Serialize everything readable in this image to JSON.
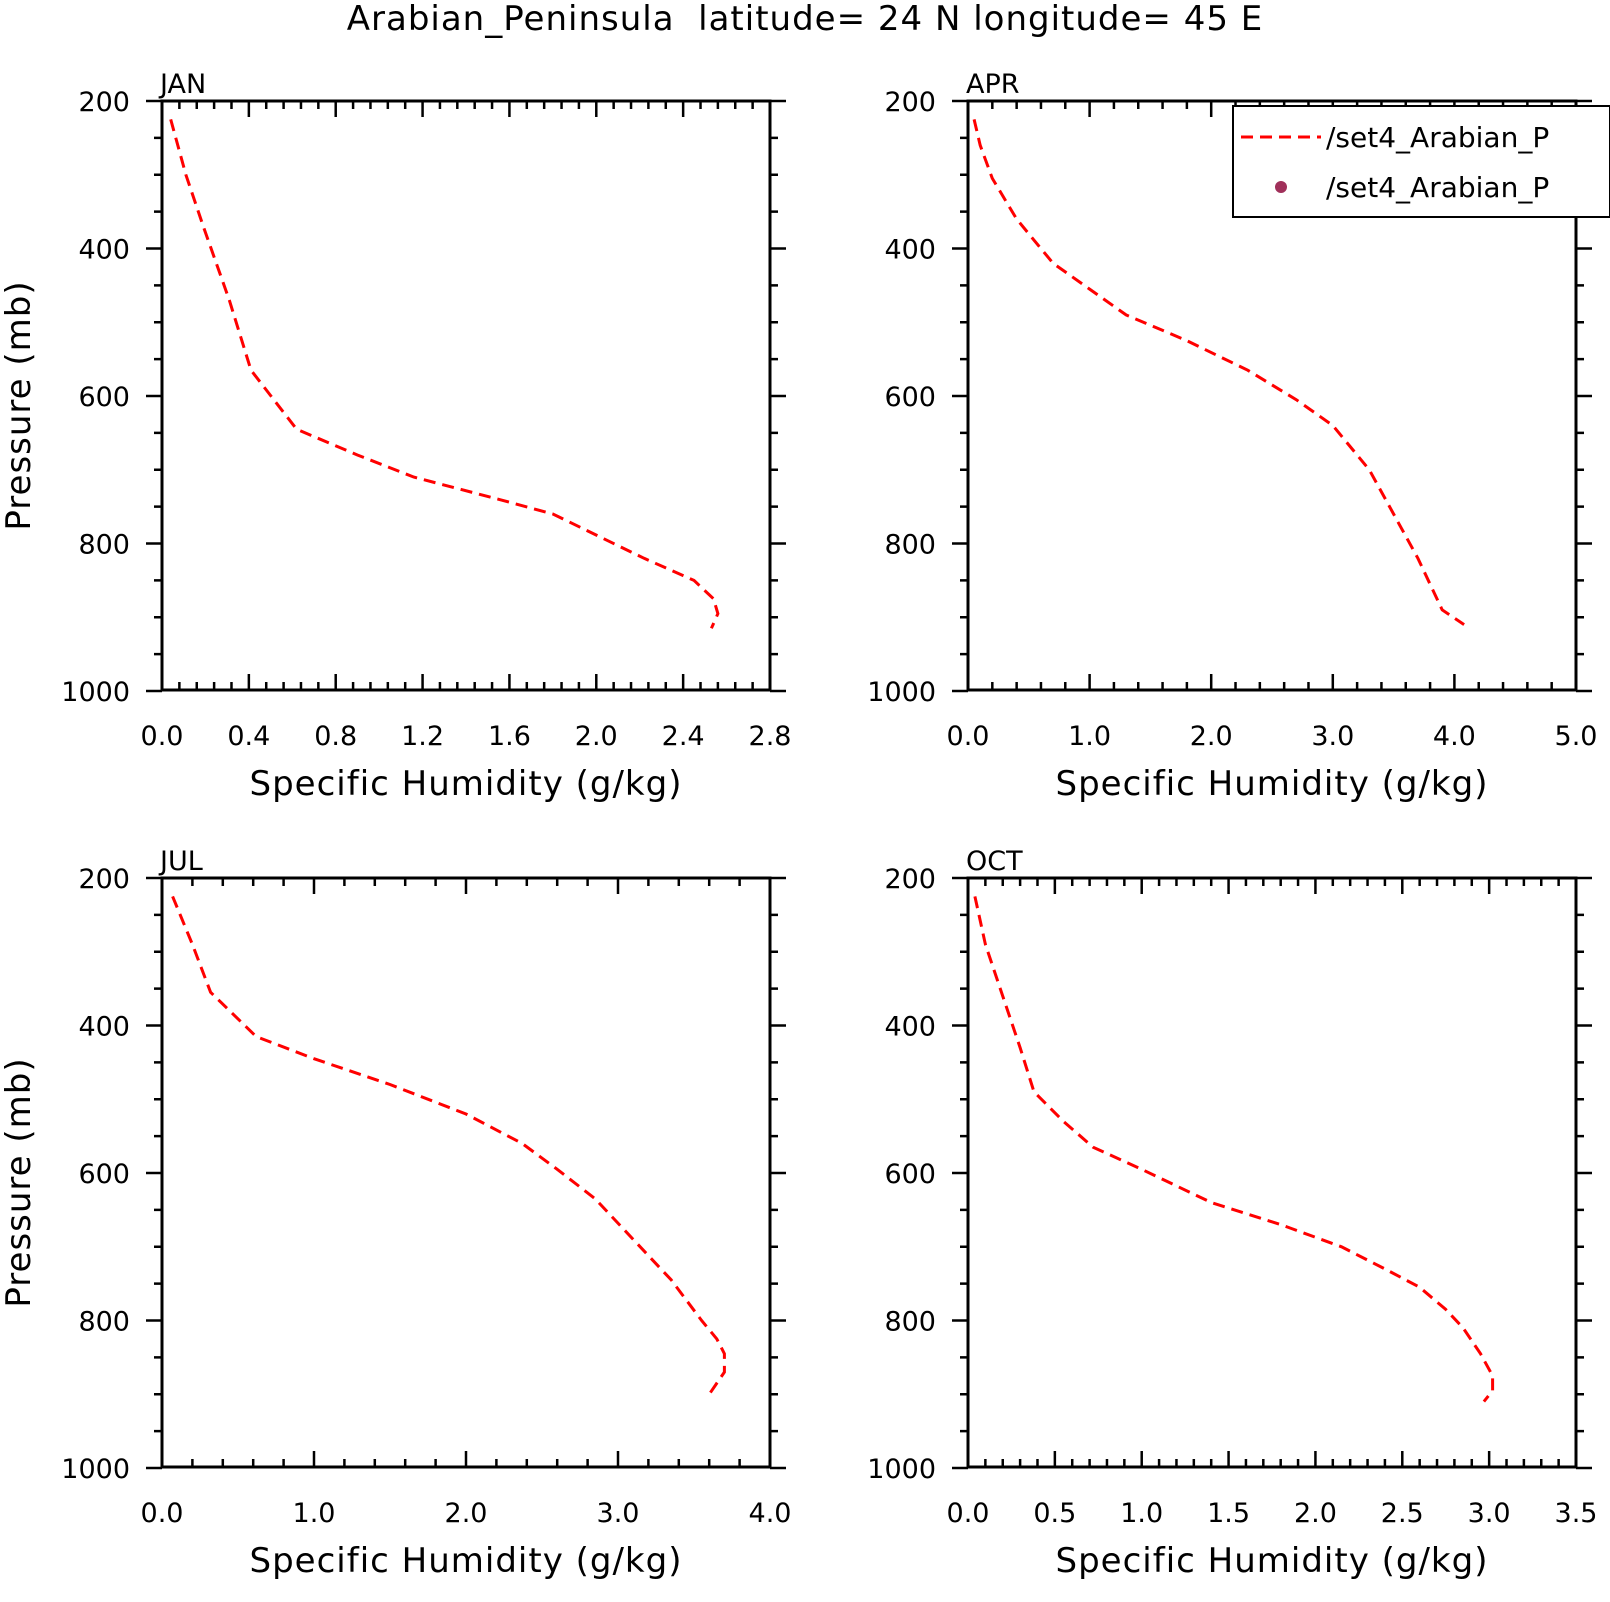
{
  "figure": {
    "title": "Arabian_Peninsula  latitude= 24 N longitude= 45 E"
  },
  "legend": {
    "entries": [
      {
        "label": "/set4_Arabian_P",
        "style": "dashed-line",
        "color": "#ff0000"
      },
      {
        "label": "/set4_Arabian_P",
        "style": "dot",
        "color": "#a0305a"
      }
    ]
  },
  "chart_data": [
    {
      "type": "line",
      "panel": "JAN",
      "xlabel": "Specific Humidity (g/kg)",
      "ylabel": "Pressure (mb)",
      "xlim": [
        0.0,
        2.8
      ],
      "ylim": [
        1000,
        200
      ],
      "y_inverted": true,
      "xticks": [
        "0.0",
        "0.4",
        "0.8",
        "1.2",
        "1.6",
        "2.0",
        "2.4",
        "2.8"
      ],
      "yticks": [
        "200",
        "400",
        "600",
        "800",
        "1000"
      ],
      "grid": false,
      "series": [
        {
          "color": "#ff0000",
          "dash": "dashed",
          "x": [
            0.04,
            0.11,
            0.19,
            0.31,
            0.41,
            0.62,
            0.9,
            1.16,
            1.55,
            1.8,
            2.22,
            2.45,
            2.54,
            2.56,
            2.53
          ],
          "y": [
            225,
            300,
            370,
            470,
            565,
            645,
            680,
            710,
            740,
            760,
            820,
            850,
            875,
            895,
            915
          ]
        }
      ]
    },
    {
      "type": "line",
      "panel": "APR",
      "xlabel": "Specific Humidity (g/kg)",
      "ylabel": "",
      "xlim": [
        0.0,
        5.0
      ],
      "ylim": [
        1000,
        200
      ],
      "y_inverted": true,
      "xticks": [
        "0.0",
        "1.0",
        "2.0",
        "3.0",
        "4.0",
        "5.0"
      ],
      "yticks": [
        "200",
        "400",
        "600",
        "800",
        "1000"
      ],
      "grid": false,
      "series": [
        {
          "color": "#ff0000",
          "dash": "dashed",
          "x": [
            0.05,
            0.1,
            0.2,
            0.4,
            0.7,
            1.0,
            1.3,
            1.8,
            2.3,
            2.7,
            3.0,
            3.3,
            3.5,
            3.7,
            3.9,
            4.08
          ],
          "y": [
            225,
            260,
            305,
            360,
            420,
            455,
            490,
            525,
            565,
            605,
            640,
            700,
            760,
            820,
            890,
            910
          ]
        }
      ]
    },
    {
      "type": "line",
      "panel": "JUL",
      "xlabel": "Specific Humidity (g/kg)",
      "ylabel": "Pressure (mb)",
      "xlim": [
        0.0,
        4.0
      ],
      "ylim": [
        1000,
        200
      ],
      "y_inverted": true,
      "xticks": [
        "0.0",
        "1.0",
        "2.0",
        "3.0",
        "4.0"
      ],
      "yticks": [
        "200",
        "400",
        "600",
        "800",
        "1000"
      ],
      "grid": false,
      "series": [
        {
          "color": "#ff0000",
          "dash": "dashed",
          "x": [
            0.07,
            0.2,
            0.32,
            0.62,
            1.0,
            1.5,
            2.0,
            2.37,
            2.6,
            2.85,
            3.1,
            3.35,
            3.55,
            3.65,
            3.7,
            3.7,
            3.6
          ],
          "y": [
            225,
            290,
            355,
            415,
            445,
            480,
            520,
            560,
            595,
            635,
            690,
            745,
            800,
            825,
            845,
            870,
            900
          ]
        }
      ]
    },
    {
      "type": "line",
      "panel": "OCT",
      "xlabel": "Specific Humidity (g/kg)",
      "ylabel": "",
      "xlim": [
        0.0,
        3.5
      ],
      "ylim": [
        1000,
        200
      ],
      "y_inverted": true,
      "xticks": [
        "0.0",
        "0.5",
        "1.0",
        "1.5",
        "2.0",
        "2.5",
        "3.0",
        "3.5"
      ],
      "yticks": [
        "200",
        "400",
        "600",
        "800",
        "1000"
      ],
      "grid": false,
      "series": [
        {
          "color": "#ff0000",
          "dash": "dashed",
          "x": [
            0.04,
            0.1,
            0.2,
            0.3,
            0.38,
            0.55,
            0.72,
            1.0,
            1.4,
            1.8,
            2.15,
            2.4,
            2.6,
            2.75,
            2.85,
            2.95,
            3.02,
            3.02,
            2.97
          ],
          "y": [
            225,
            290,
            360,
            430,
            490,
            530,
            565,
            595,
            640,
            670,
            700,
            730,
            755,
            785,
            810,
            845,
            875,
            895,
            910
          ]
        }
      ]
    }
  ]
}
